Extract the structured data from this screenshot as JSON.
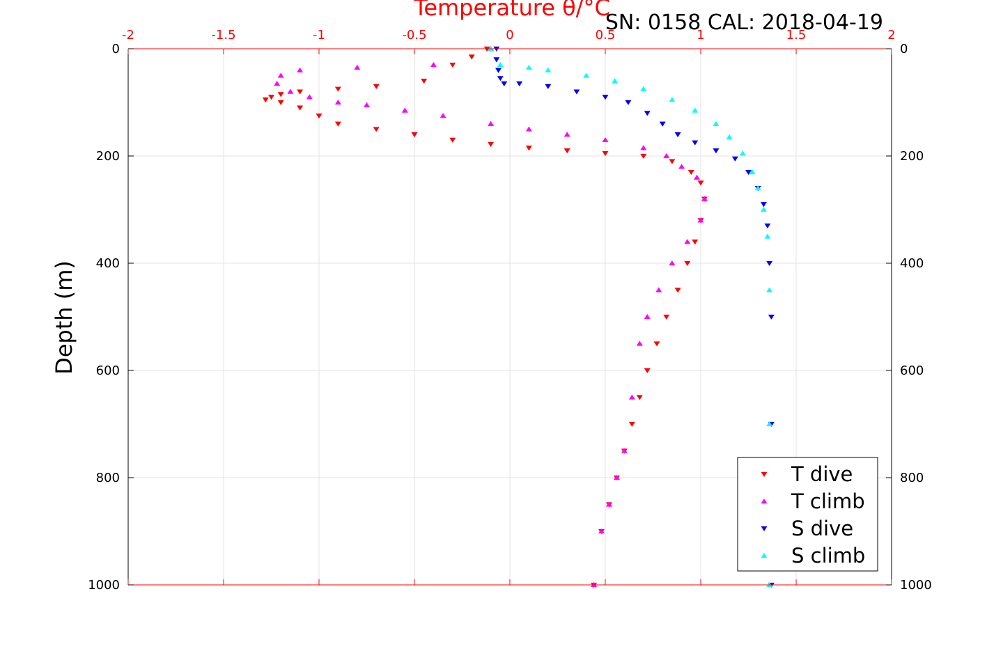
{
  "chart_data": {
    "type": "scatter",
    "title": "SN: 0158  CAL: 2018-04-19",
    "xlabel": "Temperature θ/°C",
    "ylabel": "Depth (m)",
    "xlim": [
      -2,
      2
    ],
    "ylim": [
      0,
      1000
    ],
    "y_reversed": true,
    "x_axis_position": "top",
    "x_tick_color": "#ff0000",
    "x_ticks": [
      -2,
      -1.5,
      -1,
      -0.5,
      0,
      0.5,
      1,
      1.5,
      2
    ],
    "x_tick_labels": [
      "-2",
      "-1.5",
      "-1",
      "-0.5",
      "0",
      "0.5",
      "1",
      "1.5",
      "2"
    ],
    "y_ticks": [
      0,
      200,
      400,
      600,
      800,
      1000
    ],
    "y_tick_labels": [
      "0",
      "200",
      "400",
      "600",
      "800",
      "1000"
    ],
    "grid": true,
    "legend_position": "bottom-right",
    "series": [
      {
        "name": "T dive",
        "color": "#ff0000",
        "marker": "triangle-down",
        "x": [
          -0.12,
          -0.2,
          -0.3,
          -0.45,
          -0.7,
          -0.9,
          -1.1,
          -1.2,
          -1.25,
          -1.28,
          -1.2,
          -1.1,
          -1.0,
          -0.9,
          -0.7,
          -0.5,
          -0.3,
          -0.1,
          0.1,
          0.3,
          0.5,
          0.7,
          0.85,
          0.95,
          1.0,
          1.02,
          1.0,
          0.97,
          0.93,
          0.88,
          0.82,
          0.77,
          0.72,
          0.68,
          0.64,
          0.6,
          0.56,
          0.52,
          0.48,
          0.44
        ],
        "y": [
          0,
          15,
          30,
          60,
          70,
          75,
          80,
          85,
          90,
          95,
          100,
          110,
          125,
          140,
          150,
          160,
          170,
          178,
          185,
          190,
          195,
          200,
          210,
          230,
          250,
          280,
          320,
          360,
          400,
          450,
          500,
          550,
          600,
          650,
          700,
          750,
          800,
          850,
          900,
          1000
        ]
      },
      {
        "name": "T climb",
        "color": "#ff00ff",
        "marker": "triangle-up",
        "x": [
          -0.1,
          -0.4,
          -0.8,
          -1.1,
          -1.2,
          -1.22,
          -1.15,
          -1.05,
          -0.9,
          -0.75,
          -0.55,
          -0.35,
          -0.1,
          0.1,
          0.3,
          0.5,
          0.7,
          0.82,
          0.9,
          0.98,
          1.02,
          1.0,
          0.93,
          0.85,
          0.78,
          0.72,
          0.68,
          0.64,
          0.6,
          0.56,
          0.52,
          0.48,
          0.44
        ],
        "y": [
          0,
          30,
          35,
          40,
          50,
          65,
          80,
          90,
          100,
          105,
          115,
          125,
          140,
          150,
          160,
          170,
          185,
          200,
          220,
          240,
          280,
          320,
          360,
          400,
          450,
          500,
          550,
          650,
          750,
          800,
          850,
          900,
          1000
        ]
      },
      {
        "name": "S dive",
        "color": "#0000ff",
        "marker": "triangle-down",
        "x": [
          -0.07,
          -0.07,
          -0.06,
          -0.05,
          -0.03,
          0.05,
          0.2,
          0.35,
          0.5,
          0.62,
          0.72,
          0.8,
          0.88,
          0.97,
          1.08,
          1.18,
          1.25,
          1.3,
          1.33,
          1.35,
          1.36,
          1.37,
          1.37,
          1.37
        ],
        "y": [
          0,
          20,
          40,
          55,
          65,
          65,
          70,
          80,
          90,
          100,
          120,
          140,
          160,
          175,
          190,
          205,
          230,
          260,
          290,
          330,
          400,
          500,
          700,
          1000
        ]
      },
      {
        "name": "S climb",
        "color": "#00ffff",
        "marker": "triangle-up",
        "x": [
          -0.1,
          -0.05,
          0.1,
          0.2,
          0.4,
          0.55,
          0.7,
          0.85,
          0.97,
          1.08,
          1.15,
          1.22,
          1.27,
          1.3,
          1.33,
          1.35,
          1.36,
          1.36,
          1.36
        ],
        "y": [
          0,
          30,
          35,
          40,
          50,
          60,
          75,
          95,
          115,
          140,
          165,
          195,
          230,
          260,
          300,
          350,
          450,
          700,
          1000
        ]
      }
    ]
  }
}
